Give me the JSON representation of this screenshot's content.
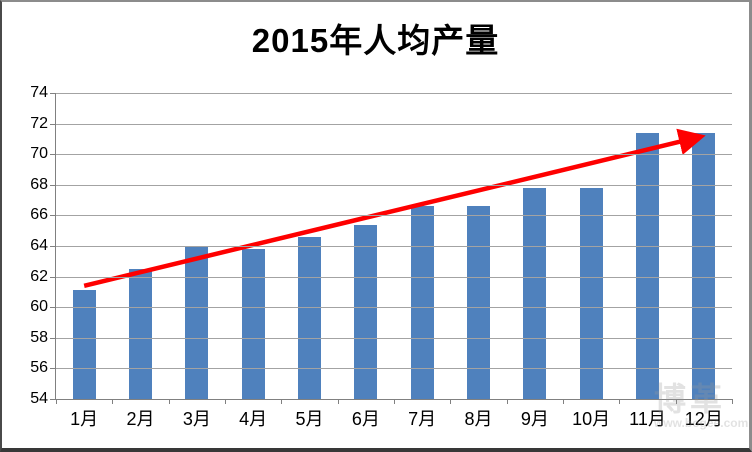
{
  "page": {
    "background": "#ffffff",
    "frame_color": "#8c8c8c"
  },
  "chart_data": {
    "type": "bar",
    "title": "2015年人均产量",
    "categories": [
      "1月",
      "2月",
      "3月",
      "4月",
      "5月",
      "6月",
      "7月",
      "8月",
      "9月",
      "10月",
      "11月",
      "12月"
    ],
    "values": [
      61.1,
      62.5,
      64.0,
      63.8,
      64.6,
      65.4,
      66.6,
      66.6,
      67.8,
      67.8,
      71.4,
      71.4
    ],
    "ylim": [
      54,
      74
    ],
    "yticks": [
      54,
      56,
      58,
      60,
      62,
      64,
      66,
      68,
      70,
      72,
      74
    ],
    "xlabel": "",
    "ylabel": "",
    "grid": "horizontal",
    "legend_position": "none",
    "bar_color": "#4f81bd",
    "gridline_color": "#a3a3a3",
    "axis_color": "#808080",
    "trendline": {
      "type": "arrow",
      "color": "#fe0000",
      "stroke_width": 4.5,
      "start": {
        "month_index": 0,
        "value": 61.4
      },
      "end": {
        "month_index": 11,
        "value": 71.1
      }
    }
  },
  "watermark": {
    "line1": "博革",
    "line2": "www.bogee.com"
  }
}
